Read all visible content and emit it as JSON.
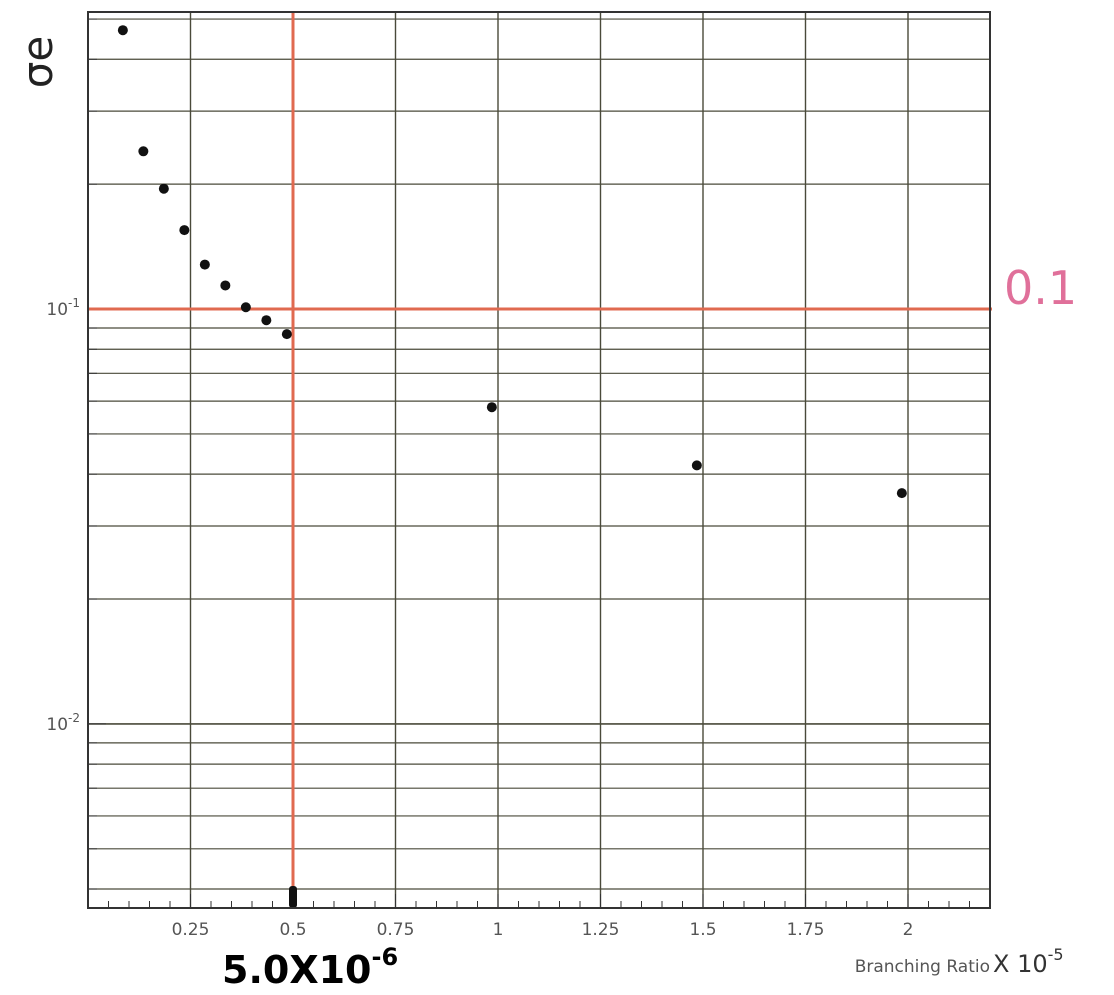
{
  "chart_data": {
    "type": "scatter",
    "xlabel": "Branching Ratio",
    "x_multiplier": "X 10",
    "x_multiplier_exp": "-5",
    "ylabel": "σe",
    "yscale": "log",
    "xlim": [
      0,
      2.2
    ],
    "ylim": [
      0.0036,
      0.52
    ],
    "grid": true,
    "x_ticks": [
      0.25,
      0.5,
      0.75,
      1,
      1.25,
      1.5,
      1.75,
      2
    ],
    "x_tick_labels": [
      "0.25",
      "0.5",
      "0.75",
      "1",
      "1.25",
      "1.5",
      "1.75",
      "2"
    ],
    "y_tick_labels": [
      {
        "base": "10",
        "exp": "-1",
        "value": 0.1
      },
      {
        "base": "10",
        "exp": "-2",
        "value": 0.01
      }
    ],
    "points": [
      {
        "x": 0.085,
        "y": 0.47
      },
      {
        "x": 0.135,
        "y": 0.24
      },
      {
        "x": 0.185,
        "y": 0.195
      },
      {
        "x": 0.235,
        "y": 0.155
      },
      {
        "x": 0.285,
        "y": 0.128
      },
      {
        "x": 0.335,
        "y": 0.114
      },
      {
        "x": 0.385,
        "y": 0.101
      },
      {
        "x": 0.435,
        "y": 0.094
      },
      {
        "x": 0.485,
        "y": 0.087
      },
      {
        "x": 0.985,
        "y": 0.058
      },
      {
        "x": 1.485,
        "y": 0.042
      },
      {
        "x": 1.985,
        "y": 0.036
      }
    ],
    "marker_color": "#111111",
    "grid_color": "#4a4a3a",
    "highlight_color": "#e06a50",
    "annotations": {
      "hline_value": 0.1,
      "hline_label": "0.1",
      "vline_value": 0.5,
      "vline_label": "5.0X10",
      "vline_label_exp": "-6"
    }
  }
}
